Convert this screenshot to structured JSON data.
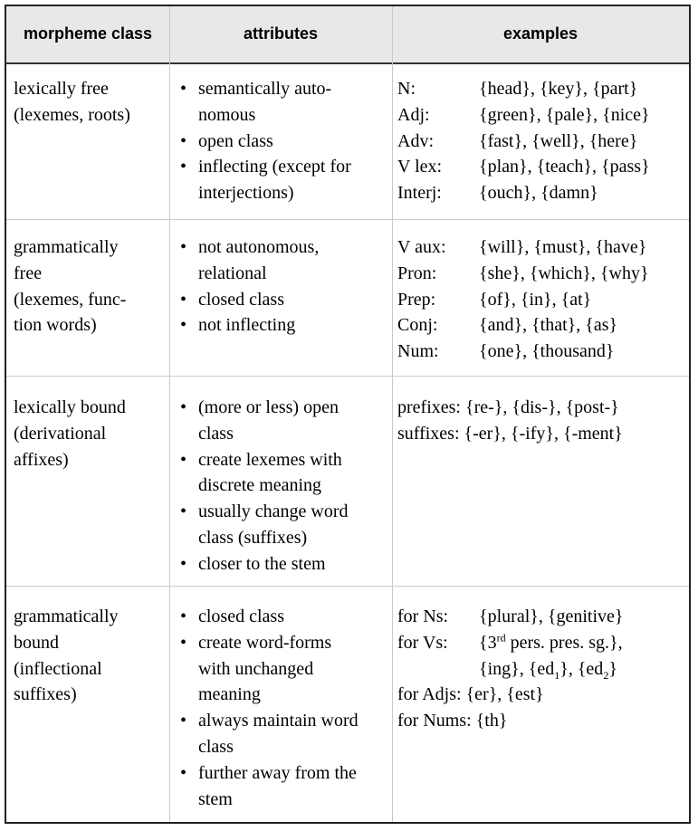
{
  "headers": [
    "morpheme class",
    "attributes",
    "examples"
  ],
  "rows": [
    {
      "class_lines": [
        "lexically free",
        "(lexemes, roots)"
      ],
      "attributes": [
        [
          "semantically auto-",
          "nomous"
        ],
        [
          "open class"
        ],
        [
          "inflecting (except for",
          "interjections)"
        ]
      ],
      "examples": [
        {
          "label": "N:",
          "value": "{head}, {key}, {part}"
        },
        {
          "label": "Adj:",
          "value": "{green}, {pale}, {nice}"
        },
        {
          "label": "Adv:",
          "value": "{fast}, {well}, {here}"
        },
        {
          "label": "V lex:",
          "value": "{plan}, {teach}, {pass}"
        },
        {
          "label": "Interj:",
          "value": "{ouch}, {damn}"
        }
      ]
    },
    {
      "class_lines": [
        "grammatically",
        "free",
        "(lexemes, func-",
        "tion words)"
      ],
      "attributes": [
        [
          "not autonomous,",
          "relational"
        ],
        [
          "closed class"
        ],
        [
          "not inflecting"
        ]
      ],
      "examples": [
        {
          "label": "V aux:",
          "value": "{will}, {must}, {have}"
        },
        {
          "label": "Pron:",
          "value": "{she}, {which}, {why}"
        },
        {
          "label": "Prep:",
          "value": "{of}, {in}, {at}"
        },
        {
          "label": "Conj:",
          "value": "{and}, {that}, {as}"
        },
        {
          "label": "Num:",
          "value": "{one}, {thousand}"
        }
      ]
    },
    {
      "class_lines": [
        "lexically bound",
        "(derivational",
        "affixes)"
      ],
      "attributes": [
        [
          "(more or less) open",
          "class"
        ],
        [
          "create lexemes with",
          "discrete meaning"
        ],
        [
          "usually change word",
          "class (suffixes)"
        ],
        [
          "closer to the stem"
        ]
      ],
      "examples": [
        {
          "label": "prefixes:",
          "value": "{re-}, {dis-}, {post-}"
        },
        {
          "label": "suffixes:",
          "value": "{-er}, {-ify}, {-ment}"
        }
      ]
    },
    {
      "class_lines": [
        "grammatically",
        "bound",
        "(inflectional",
        "suffixes)"
      ],
      "attributes": [
        [
          "closed class"
        ],
        [
          "create word-forms",
          "with unchanged",
          "meaning"
        ],
        [
          "always maintain word",
          "class"
        ],
        [
          "further away from the",
          "stem"
        ]
      ],
      "examples": {
        "for_ns_label": "for Ns:",
        "for_ns_value": "{plural}, {genitive}",
        "for_vs_label": "for Vs:",
        "vs_line1_open": "{3",
        "vs_line1_sup": "rd",
        "vs_line1_rest": " pers. pres. sg.},",
        "vs_line2_a": "{ing}, {ed",
        "vs_line2_sub1": "1",
        "vs_line2_b": "}, {ed",
        "vs_line2_sub2": "2",
        "vs_line2_c": "}",
        "for_adjs_label": "for Adjs:",
        "for_adjs_value": "{er}, {est}",
        "for_nums_label": "for Nums:",
        "for_nums_value": "{th}"
      }
    }
  ],
  "bullet_char": "•"
}
